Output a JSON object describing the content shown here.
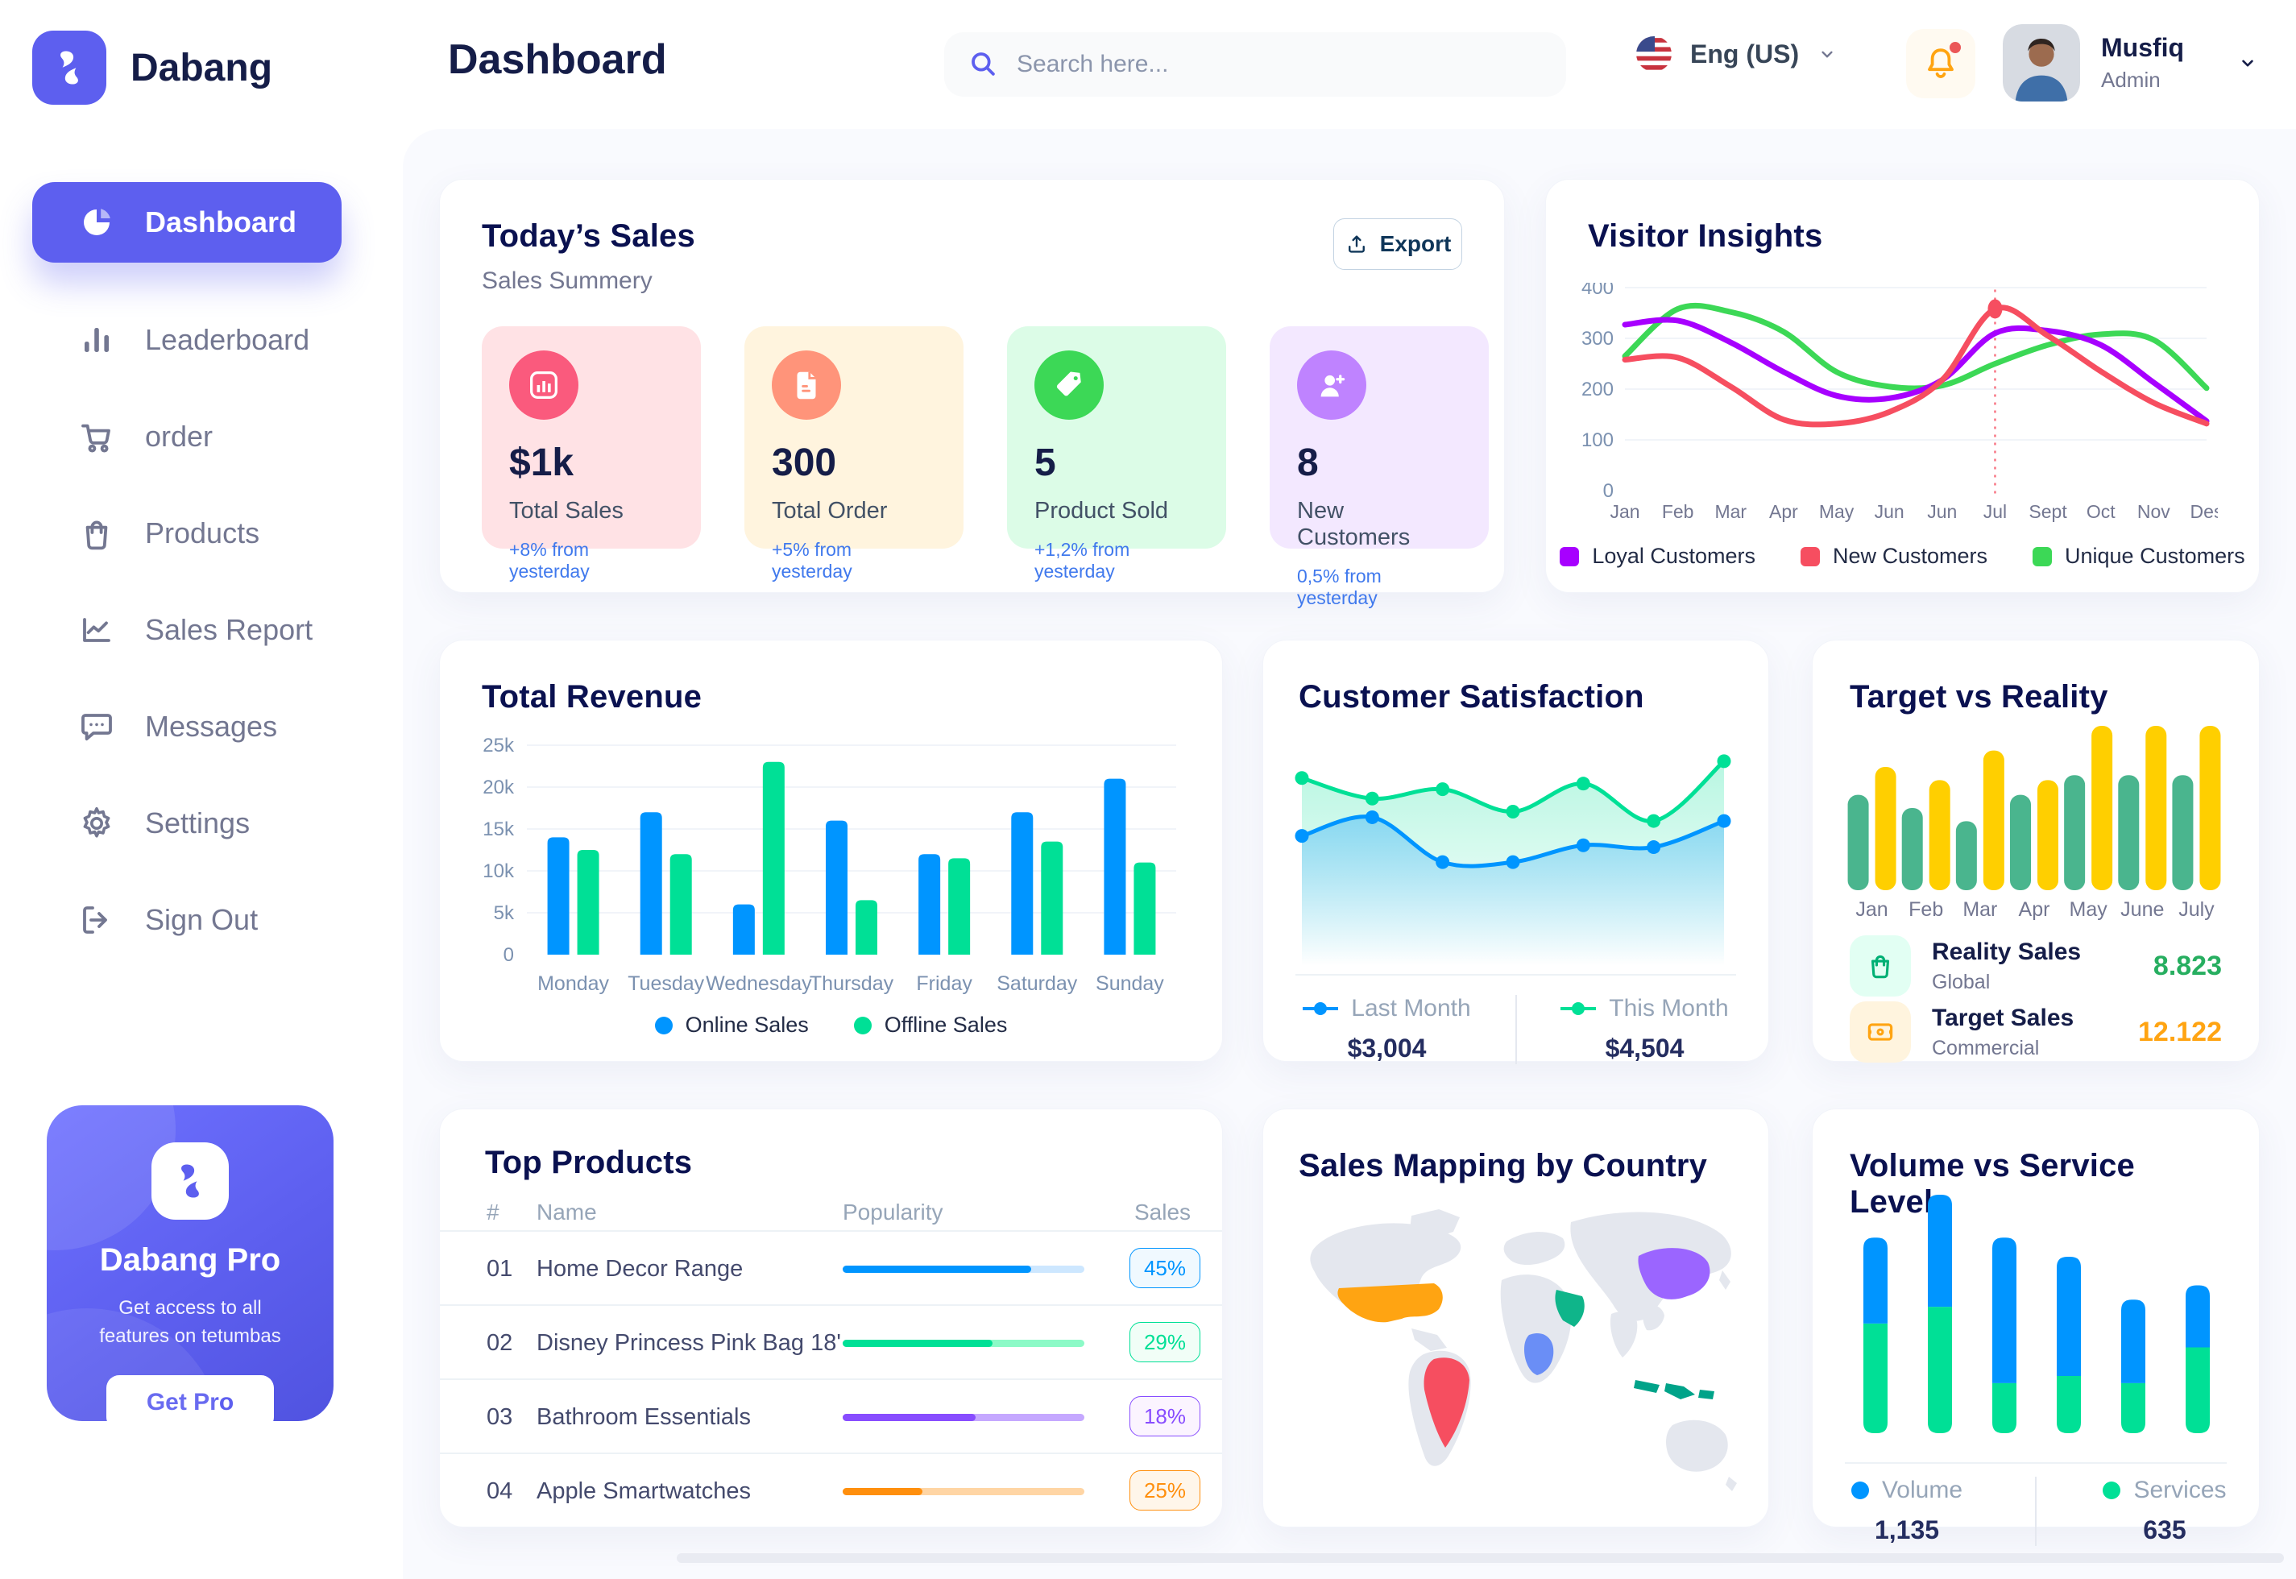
{
  "app": {
    "name": "Dabang"
  },
  "header": {
    "title": "Dashboard",
    "search_placeholder": "Search here...",
    "language": "Eng (US)",
    "user": {
      "name": "Musfiq",
      "role": "Admin"
    }
  },
  "sidebar": {
    "items": [
      {
        "label": "Dashboard",
        "icon": "pie",
        "active": true
      },
      {
        "label": "Leaderboard",
        "icon": "bars",
        "active": false
      },
      {
        "label": "order",
        "icon": "cart",
        "active": false
      },
      {
        "label": "Products",
        "icon": "bag",
        "active": false
      },
      {
        "label": "Sales Report",
        "icon": "trend",
        "active": false
      },
      {
        "label": "Messages",
        "icon": "chat",
        "active": false
      },
      {
        "label": "Settings",
        "icon": "gear",
        "active": false
      },
      {
        "label": "Sign Out",
        "icon": "signout",
        "active": false
      }
    ],
    "pro": {
      "title": "Dabang Pro",
      "subtitle": "Get access to all features on tetumbas",
      "button_label": "Get Pro"
    }
  },
  "todays_sales": {
    "title": "Today’s Sales",
    "subtitle": "Sales Summery",
    "export_label": "Export",
    "delta_color": "#4079ED",
    "cards": [
      {
        "value": "$1k",
        "label": "Total Sales",
        "delta": "+8% from yesterday",
        "bg": "#FFE2E5",
        "icon_bg": "#FA5A7D",
        "icon": "stat-chart"
      },
      {
        "value": "300",
        "label": "Total Order",
        "delta": "+5% from yesterday",
        "bg": "#FFF4DE",
        "icon_bg": "#FF947A",
        "icon": "order-file"
      },
      {
        "value": "5",
        "label": "Product Sold",
        "delta": "+1,2% from yesterday",
        "bg": "#DCFCE7",
        "icon_bg": "#3CD856",
        "icon": "tag"
      },
      {
        "value": "8",
        "label": "New Customers",
        "delta": "0,5% from yesterday",
        "bg": "#F3E8FF",
        "icon_bg": "#BF83FF",
        "icon": "new-user"
      }
    ]
  },
  "top_products": {
    "title": "Top Products",
    "columns": [
      "#",
      "Name",
      "Popularity",
      "Sales"
    ],
    "rows": [
      {
        "num": "01",
        "name": "Home Decor Range",
        "fill": 78,
        "badge": "45%",
        "color": "#0095FF",
        "track": "#CDE7FF",
        "badge_bg": "#F0F9FF"
      },
      {
        "num": "02",
        "name": "Disney Princess Pink Bag 18'",
        "fill": 62,
        "badge": "29%",
        "color": "#00E096",
        "track": "#8CFAC7",
        "badge_bg": "#F1FEF7"
      },
      {
        "num": "03",
        "name": "Bathroom Essentials",
        "fill": 55,
        "badge": "18%",
        "color": "#884DFF",
        "track": "#C5A8FF",
        "badge_bg": "#FBF4FF"
      },
      {
        "num": "04",
        "name": "Apple Smartwatches",
        "fill": 33,
        "badge": "25%",
        "color": "#FF8F0D",
        "track": "#FFD5A4",
        "badge_bg": "#FFF6EA"
      }
    ]
  },
  "sales_mapping": {
    "title": "Sales Mapping by Country",
    "countries": [
      {
        "name": "United States",
        "color": "#FFA412"
      },
      {
        "name": "Brazil",
        "color": "#F64E60"
      },
      {
        "name": "DR Congo",
        "color": "#6A8EF6"
      },
      {
        "name": "Saudi Arabia",
        "color": "#0FB58A"
      },
      {
        "name": "China",
        "color": "#9B65FF"
      },
      {
        "name": "Indonesia",
        "color": "#00A389"
      }
    ]
  },
  "chart_data": [
    {
      "id": "visitor_insights",
      "type": "line",
      "title": "Visitor Insights",
      "x": [
        "Jan",
        "Feb",
        "Mar",
        "Apr",
        "May",
        "Jun",
        "Jun",
        "Jul",
        "Sept",
        "Oct",
        "Nov",
        "Des"
      ],
      "ylim": [
        0,
        400
      ],
      "yticks": [
        0,
        100,
        200,
        300,
        400
      ],
      "grid": true,
      "legend_position": "bottom",
      "series": [
        {
          "name": "Loyal Customers",
          "color": "#A700FF",
          "values": [
            327,
            335,
            292,
            234,
            187,
            182,
            218,
            310,
            315,
            287,
            213,
            137
          ]
        },
        {
          "name": "New Customers",
          "color": "#F64E60",
          "values": [
            258,
            262,
            205,
            140,
            132,
            155,
            218,
            358,
            305,
            235,
            173,
            132
          ]
        },
        {
          "name": "Unique Customers",
          "color": "#3CD856",
          "values": [
            265,
            358,
            352,
            313,
            234,
            205,
            207,
            250,
            287,
            308,
            297,
            202
          ]
        }
      ],
      "marker": {
        "series": 1,
        "index": 7,
        "value": 358
      }
    },
    {
      "id": "total_revenue",
      "type": "bar",
      "title": "Total Revenue",
      "categories": [
        "Monday",
        "Tuesday",
        "Wednesday",
        "Thursday",
        "Friday",
        "Saturday",
        "Sunday"
      ],
      "ylim": [
        0,
        25
      ],
      "ytick_labels": [
        "0",
        "5k",
        "10k",
        "15k",
        "20k",
        "25k"
      ],
      "grid": true,
      "legend_position": "bottom",
      "series": [
        {
          "name": "Online Sales",
          "color": "#0095FF",
          "values": [
            14,
            17,
            6,
            16,
            12,
            17,
            21
          ]
        },
        {
          "name": "Offline Sales",
          "color": "#00E096",
          "values": [
            12.5,
            12,
            23,
            6.5,
            11.5,
            13.5,
            11
          ]
        }
      ]
    },
    {
      "id": "customer_satisfaction",
      "type": "area",
      "title": "Customer Satisfaction",
      "ylim": [
        0,
        100
      ],
      "grid": false,
      "legend_position": "bottom",
      "series": [
        {
          "name": "This Month",
          "color": "#00E096",
          "values": [
            79,
            68,
            73,
            61,
            76,
            56,
            88
          ]
        },
        {
          "name": "Last Month",
          "color": "#0095FF",
          "values": [
            48,
            58,
            34,
            34,
            43,
            42,
            56
          ]
        }
      ],
      "legend": [
        {
          "name": "Last Month",
          "value": "$3,004",
          "color": "#0095FF"
        },
        {
          "name": "This Month",
          "value": "$4,504",
          "color": "#00E096"
        }
      ]
    },
    {
      "id": "target_vs_reality",
      "type": "bar",
      "title": "Target vs Reality",
      "categories": [
        "Jan",
        "Feb",
        "Mar",
        "Apr",
        "May",
        "June",
        "July"
      ],
      "ylim": [
        0,
        100
      ],
      "grid": false,
      "legend_position": "bottom",
      "series": [
        {
          "name": "Reality Sales",
          "color": "#4AB58E",
          "values": [
            58,
            50,
            42,
            58,
            70,
            70,
            70
          ]
        },
        {
          "name": "Target Sales",
          "color": "#FFCF00",
          "values": [
            75,
            67,
            85,
            67,
            100,
            100,
            100
          ]
        }
      ],
      "legend": [
        {
          "name": "Reality Sales",
          "sub": "Global",
          "value": "8.823",
          "value_color": "#27AE60",
          "icon": "bag-legend",
          "icon_bg": "#E2FFF3",
          "icon_color": "#00B074"
        },
        {
          "name": "Target Sales",
          "sub": "Commercial",
          "value": "12.122",
          "value_color": "#FFA412",
          "icon": "ticket-legend",
          "icon_bg": "#FFF4DE",
          "icon_color": "#FFA412"
        }
      ]
    },
    {
      "id": "volume_service",
      "type": "bar",
      "title": "Volume vs Service Level",
      "stacked": true,
      "ylim": [
        0,
        100
      ],
      "grid": false,
      "legend_position": "bottom",
      "series": [
        {
          "name": "Volume",
          "color": "#0095FF",
          "values": [
            36,
            47,
            61,
            50,
            35,
            26
          ]
        },
        {
          "name": "Services",
          "color": "#00E096",
          "values": [
            46,
            53,
            21,
            24,
            21,
            36
          ]
        }
      ],
      "legend": [
        {
          "name": "Volume",
          "value": "1,135",
          "color": "#0095FF"
        },
        {
          "name": "Services",
          "value": "635",
          "color": "#00E096"
        }
      ]
    }
  ]
}
